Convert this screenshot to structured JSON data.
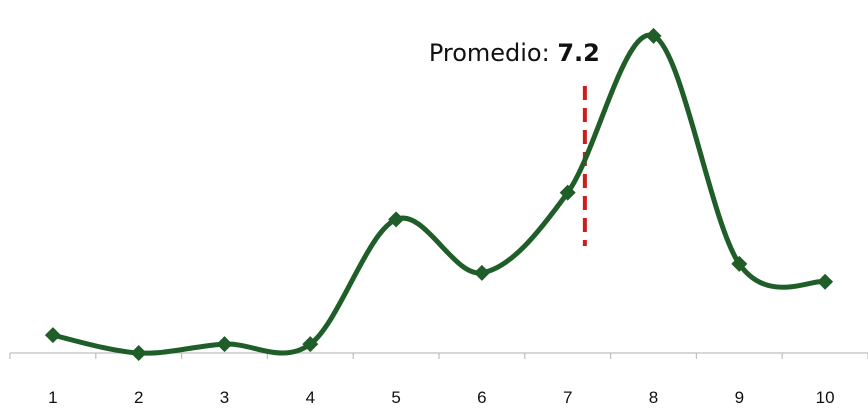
{
  "chart_data": {
    "type": "line",
    "title": "",
    "xlabel": "",
    "ylabel": "",
    "x": [
      1,
      2,
      3,
      4,
      5,
      6,
      7,
      8,
      9,
      10
    ],
    "series": [
      {
        "values": [
          1.0,
          0.0,
          0.5,
          0.5,
          7.5,
          4.5,
          9.0,
          17.8,
          5.0,
          4.0
        ]
      }
    ],
    "xlim": [
      0.5,
      10.5
    ],
    "ylim": [
      0,
      18.8
    ],
    "smooth": true,
    "marker": "diamond",
    "grid": false,
    "legend": "none",
    "colors": {
      "line": "#1f5e28",
      "average": "#cc1e1e",
      "axis": "#bfbfbf"
    },
    "annotations": [
      {
        "label": "Promedio: ",
        "value_label": "7.2",
        "x": 7.2,
        "style": "dashed-vertical"
      }
    ]
  }
}
